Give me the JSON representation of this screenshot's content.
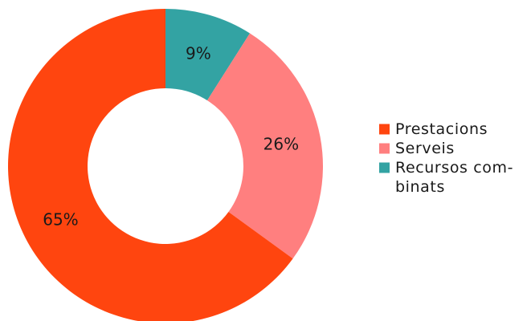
{
  "chart_data": {
    "type": "pie",
    "variant": "donut",
    "title": "",
    "unit": "%",
    "categories": [
      "Prestacions",
      "Serveis",
      "Recursos combinats"
    ],
    "values": [
      65,
      26,
      9
    ],
    "labels": [
      "65%",
      "26%",
      "9%"
    ],
    "legend": {
      "position": "right",
      "entries": [
        {
          "lines": [
            "Prestacions"
          ]
        },
        {
          "lines": [
            "Serveis"
          ]
        },
        {
          "lines": [
            "Recursos com-",
            "binats"
          ]
        }
      ]
    },
    "colors": [
      "#ff450f",
      "#ff7f7f",
      "#33a3a3"
    ],
    "start": "top",
    "direction": "clockwise",
    "slice_order": [
      2,
      1,
      0
    ]
  }
}
